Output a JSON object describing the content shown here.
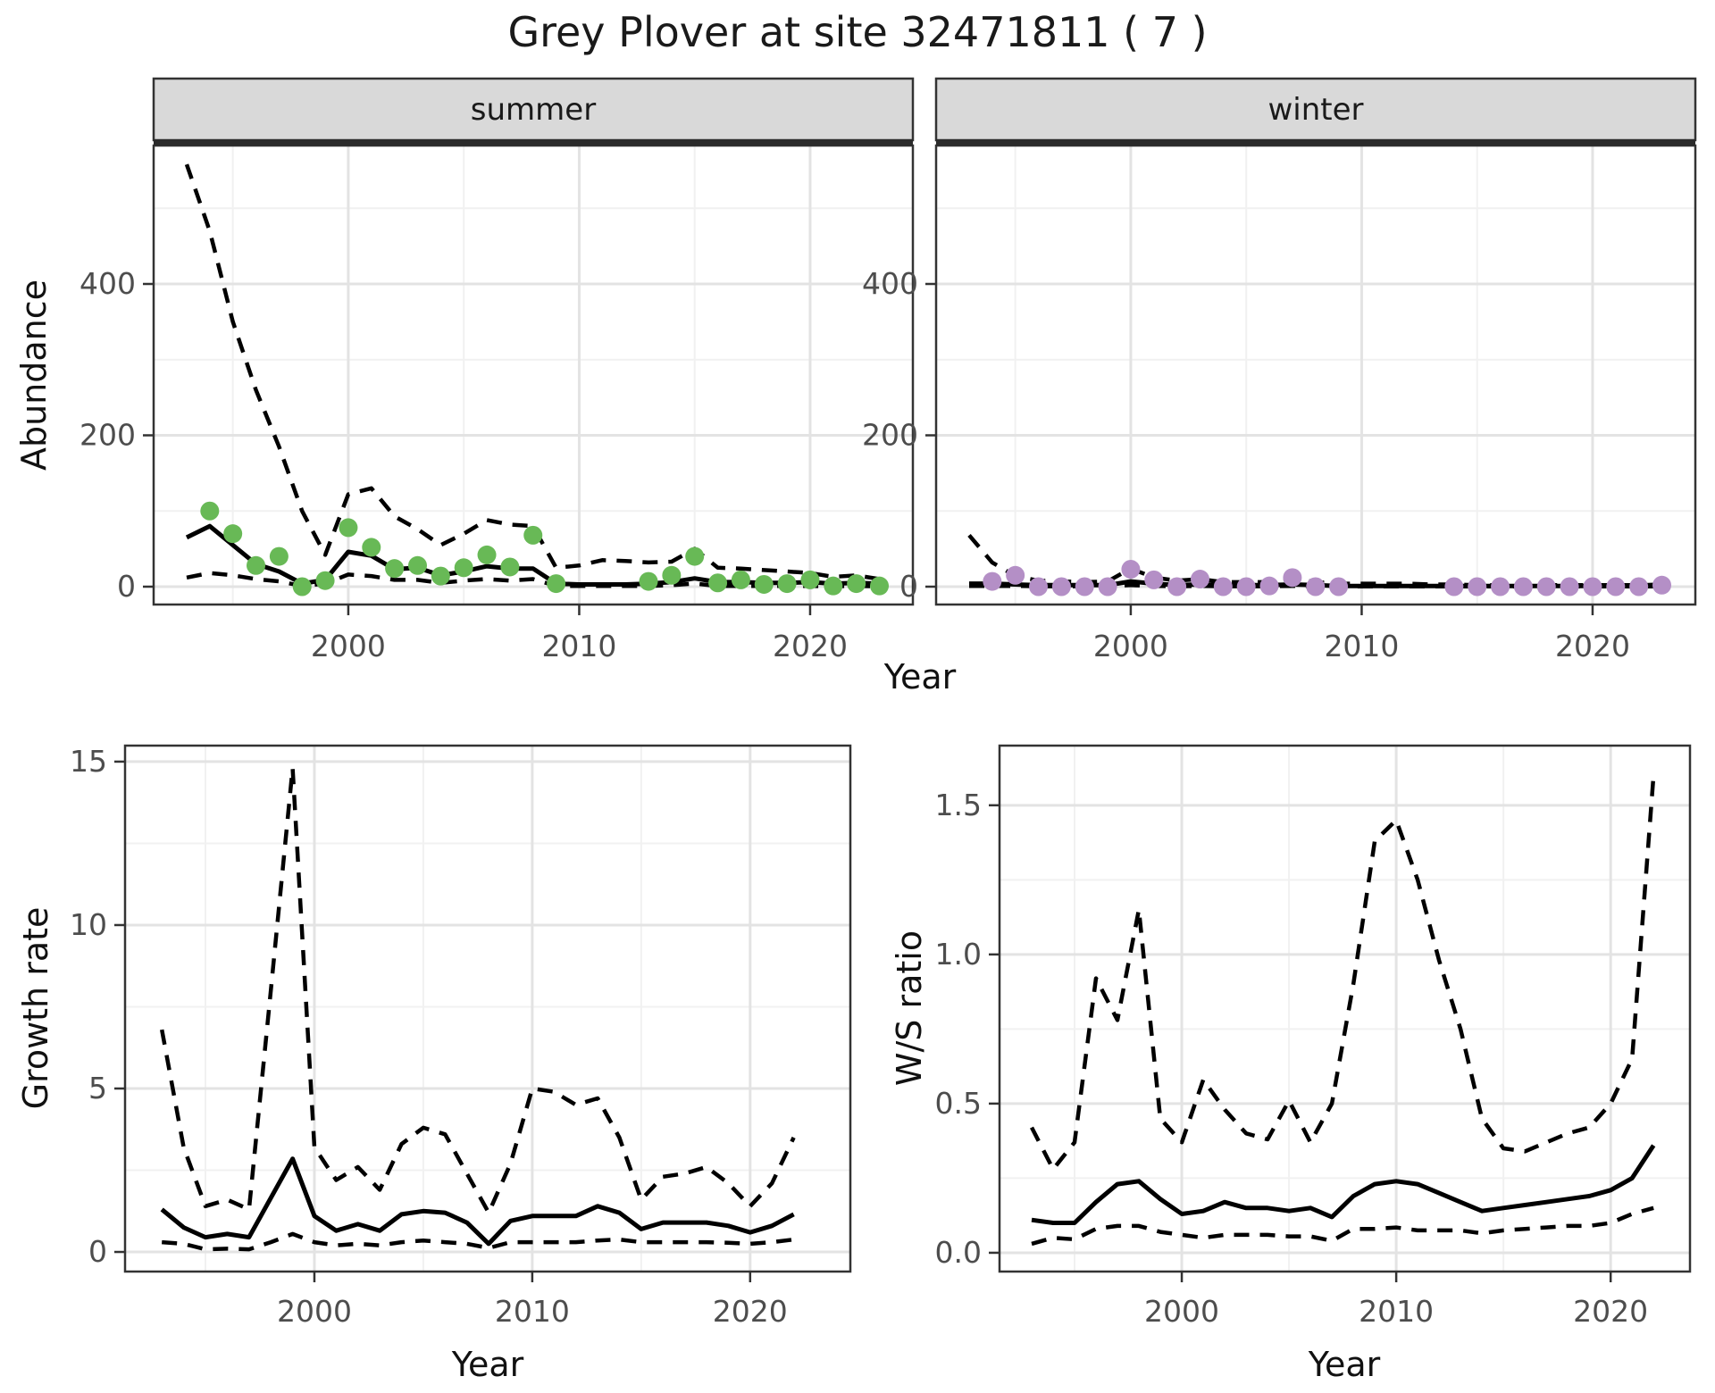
{
  "title": "Grey Plover at site 32471811 ( 7 )",
  "labels": {
    "facet_summer": "summer",
    "facet_winter": "winter",
    "top_xlabel": "Year",
    "abundance_ylabel": "Abundance",
    "growth_ylabel": "Growth rate",
    "ws_ylabel": "W/S ratio",
    "growth_xlabel": "Year",
    "ws_xlabel": "Year"
  },
  "colors": {
    "summer_point": "#68b956",
    "winter_point": "#b48fc6",
    "line": "#000000",
    "grid_major": "#e3e3e3",
    "grid_minor": "#f1f1f1",
    "strip_bg": "#d9d9d9",
    "strip_underline": "#2b2b2b",
    "panel_border": "#333333",
    "tick_text": "#4d4d4d"
  },
  "chart_data": [
    {
      "id": "summer",
      "type": "line",
      "facet": "summer",
      "title": "Abundance - summer",
      "xlabel": "Year",
      "ylabel": "Abundance",
      "x_ticks": [
        2000,
        2010,
        2020
      ],
      "y_ticks": [
        0,
        200,
        400
      ],
      "xlim": [
        1991.57,
        2024.45
      ],
      "ylim": [
        -23.6,
        582.9
      ],
      "grid": true,
      "years": [
        1993,
        1994,
        1995,
        1996,
        1997,
        1998,
        1999,
        2000,
        2001,
        2002,
        2003,
        2004,
        2005,
        2006,
        2007,
        2008,
        2009,
        2010,
        2011,
        2012,
        2013,
        2014,
        2015,
        2016,
        2017,
        2018,
        2019,
        2020,
        2021,
        2022,
        2023
      ],
      "series": [
        {
          "name": "mean",
          "style": "solid",
          "values": [
            65,
            80,
            55,
            30,
            20,
            4,
            9,
            46,
            41,
            23,
            25,
            15,
            20,
            27,
            24,
            24,
            4,
            3,
            3,
            3,
            4,
            6,
            11,
            6,
            6,
            5,
            5,
            6,
            4,
            5,
            4
          ]
        },
        {
          "name": "upper_ci",
          "style": "dashed",
          "values": [
            558,
            470,
            350,
            260,
            185,
            100,
            42,
            122,
            130,
            93,
            76,
            55,
            70,
            88,
            82,
            80,
            25,
            28,
            35,
            34,
            32,
            33,
            50,
            25,
            24,
            22,
            20,
            18,
            13,
            15,
            10
          ]
        },
        {
          "name": "lower_ci",
          "style": "dashed",
          "values": [
            12,
            18,
            15,
            10,
            7,
            1,
            4,
            16,
            14,
            9,
            9,
            5,
            8,
            10,
            8,
            10,
            1,
            1,
            1,
            1,
            1,
            2,
            4,
            1,
            1,
            1,
            1,
            1,
            0.5,
            1,
            0.5
          ]
        }
      ],
      "points": {
        "color_key": "summer_point",
        "years": [
          1994,
          1995,
          1996,
          1997,
          1998,
          1999,
          2000,
          2001,
          2002,
          2003,
          2004,
          2005,
          2006,
          2007,
          2008,
          2009,
          2013,
          2014,
          2015,
          2016,
          2017,
          2018,
          2019,
          2020,
          2021,
          2022,
          2023
        ],
        "values": [
          100,
          70,
          28,
          40,
          0,
          8,
          78,
          52,
          24,
          28,
          14,
          25,
          42,
          26,
          68,
          4,
          7,
          15,
          40,
          5,
          9,
          3,
          4,
          9,
          1,
          4,
          1
        ]
      }
    },
    {
      "id": "winter",
      "type": "line",
      "facet": "winter",
      "title": "Abundance - winter",
      "xlabel": "Year",
      "ylabel": "Abundance",
      "x_ticks": [
        2000,
        2010,
        2020
      ],
      "y_ticks": [
        0,
        200,
        400
      ],
      "xlim": [
        1991.57,
        2024.45
      ],
      "ylim": [
        -23.6,
        582.9
      ],
      "grid": true,
      "years": [
        1993,
        1994,
        1995,
        1996,
        1997,
        1998,
        1999,
        2000,
        2001,
        2002,
        2003,
        2004,
        2005,
        2006,
        2007,
        2008,
        2009,
        2010,
        2011,
        2012,
        2013,
        2014,
        2015,
        2016,
        2017,
        2018,
        2019,
        2020,
        2021,
        2022,
        2023
      ],
      "series": [
        {
          "name": "mean",
          "style": "solid",
          "values": [
            4,
            4,
            3,
            2,
            2,
            2,
            2,
            7,
            4,
            2,
            3,
            2,
            2,
            2,
            3,
            2,
            1,
            1,
            1,
            1,
            1,
            1,
            1,
            1,
            1,
            1,
            1,
            1,
            1,
            1,
            1
          ]
        },
        {
          "name": "upper_ci",
          "style": "dashed",
          "values": [
            68,
            32,
            14,
            8,
            7,
            6,
            7,
            24,
            12,
            8,
            10,
            6,
            6,
            6,
            11,
            6,
            4,
            4,
            4,
            4,
            3,
            3,
            2,
            2,
            2,
            2,
            2,
            2,
            2,
            2,
            3
          ]
        },
        {
          "name": "lower_ci",
          "style": "dashed",
          "values": [
            1,
            1,
            1,
            0.5,
            0.5,
            0.5,
            0.5,
            2,
            1,
            0.5,
            1,
            0.5,
            0.5,
            0.5,
            1,
            0.5,
            0.3,
            0.3,
            0.3,
            0.3,
            0.3,
            0.3,
            0.3,
            0.3,
            0.3,
            0.3,
            0.3,
            0.3,
            0.3,
            0.3,
            0.3
          ]
        }
      ],
      "points": {
        "color_key": "winter_point",
        "years": [
          1994,
          1995,
          1996,
          1997,
          1998,
          1999,
          2000,
          2001,
          2002,
          2003,
          2004,
          2005,
          2006,
          2007,
          2008,
          2009,
          2014,
          2015,
          2016,
          2017,
          2018,
          2019,
          2020,
          2021,
          2022,
          2023
        ],
        "values": [
          7,
          15,
          0,
          0,
          0,
          0,
          23,
          9,
          0,
          10,
          0,
          0,
          1,
          12,
          0,
          0,
          0,
          0,
          0,
          0,
          0,
          0,
          0,
          0,
          0,
          2
        ]
      }
    },
    {
      "id": "growth",
      "type": "line",
      "title": "Growth rate",
      "xlabel": "Year",
      "ylabel": "Growth rate",
      "x_ticks": [
        2000,
        2010,
        2020
      ],
      "y_ticks": [
        0,
        5,
        10,
        15
      ],
      "xlim": [
        1991.31,
        2024.6
      ],
      "ylim": [
        -0.6,
        15.49
      ],
      "grid": true,
      "years": [
        1993,
        1994,
        1995,
        1996,
        1997,
        1998,
        1999,
        2000,
        2001,
        2002,
        2003,
        2004,
        2005,
        2006,
        2007,
        2008,
        2009,
        2010,
        2011,
        2012,
        2013,
        2014,
        2015,
        2016,
        2017,
        2018,
        2019,
        2020,
        2021,
        2022
      ],
      "series": [
        {
          "name": "mean",
          "style": "solid",
          "values": [
            1.3,
            0.75,
            0.45,
            0.55,
            0.45,
            1.65,
            2.85,
            1.1,
            0.65,
            0.85,
            0.65,
            1.15,
            1.25,
            1.2,
            0.9,
            0.25,
            0.95,
            1.1,
            1.1,
            1.1,
            1.4,
            1.2,
            0.7,
            0.9,
            0.9,
            0.9,
            0.8,
            0.6,
            0.8,
            1.15
          ]
        },
        {
          "name": "upper_ci",
          "style": "dashed",
          "values": [
            6.8,
            3.2,
            1.4,
            1.6,
            1.3,
            8.0,
            14.8,
            3.2,
            2.2,
            2.6,
            1.9,
            3.3,
            3.8,
            3.6,
            2.4,
            1.2,
            2.7,
            5.0,
            4.9,
            4.5,
            4.7,
            3.5,
            1.6,
            2.3,
            2.4,
            2.6,
            2.1,
            1.4,
            2.1,
            3.5
          ]
        },
        {
          "name": "lower_ci",
          "style": "dashed",
          "values": [
            0.3,
            0.25,
            0.08,
            0.1,
            0.08,
            0.3,
            0.55,
            0.3,
            0.2,
            0.25,
            0.2,
            0.3,
            0.35,
            0.3,
            0.25,
            0.12,
            0.3,
            0.3,
            0.3,
            0.3,
            0.35,
            0.38,
            0.3,
            0.3,
            0.3,
            0.3,
            0.28,
            0.25,
            0.3,
            0.38
          ]
        }
      ],
      "points": null
    },
    {
      "id": "ws",
      "type": "line",
      "title": "W/S ratio",
      "xlabel": "Year",
      "ylabel": "W/S ratio",
      "x_ticks": [
        2000,
        2010,
        2020
      ],
      "y_ticks": [
        0.0,
        0.5,
        1.0,
        1.5
      ],
      "y_tick_labels": [
        "0.0",
        "0.5",
        "1.0",
        "1.5"
      ],
      "xlim": [
        1991.5,
        2023.7
      ],
      "ylim": [
        -0.063,
        1.7
      ],
      "grid": true,
      "years": [
        1993,
        1994,
        1995,
        1996,
        1997,
        1998,
        1999,
        2000,
        2001,
        2002,
        2003,
        2004,
        2005,
        2006,
        2007,
        2008,
        2009,
        2010,
        2011,
        2012,
        2013,
        2014,
        2015,
        2016,
        2017,
        2018,
        2019,
        2020,
        2021,
        2022
      ],
      "series": [
        {
          "name": "mean",
          "style": "solid",
          "values": [
            0.11,
            0.1,
            0.1,
            0.17,
            0.23,
            0.24,
            0.18,
            0.13,
            0.14,
            0.17,
            0.15,
            0.15,
            0.14,
            0.15,
            0.12,
            0.19,
            0.23,
            0.24,
            0.23,
            0.2,
            0.17,
            0.14,
            0.15,
            0.16,
            0.17,
            0.18,
            0.19,
            0.21,
            0.25,
            0.36
          ]
        },
        {
          "name": "upper_ci",
          "style": "dashed",
          "values": [
            0.42,
            0.28,
            0.37,
            0.92,
            0.78,
            1.15,
            0.45,
            0.37,
            0.58,
            0.48,
            0.4,
            0.38,
            0.51,
            0.37,
            0.5,
            0.9,
            1.38,
            1.45,
            1.25,
            0.98,
            0.75,
            0.45,
            0.35,
            0.34,
            0.37,
            0.4,
            0.42,
            0.5,
            0.65,
            1.6
          ]
        },
        {
          "name": "lower_ci",
          "style": "dashed",
          "values": [
            0.03,
            0.05,
            0.045,
            0.08,
            0.09,
            0.09,
            0.07,
            0.06,
            0.05,
            0.06,
            0.06,
            0.06,
            0.055,
            0.055,
            0.04,
            0.08,
            0.08,
            0.085,
            0.075,
            0.075,
            0.075,
            0.065,
            0.075,
            0.08,
            0.085,
            0.09,
            0.09,
            0.1,
            0.13,
            0.15
          ]
        }
      ],
      "points": null
    }
  ]
}
